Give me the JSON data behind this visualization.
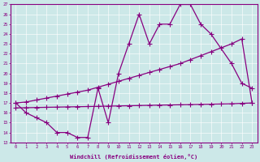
{
  "xlabel": "Windchill (Refroidissement éolien,°C)",
  "bg_color": "#cce8e8",
  "line_color": "#880080",
  "xmin": -0.5,
  "xmax": 23.5,
  "ymin": 13,
  "ymax": 27,
  "line1_x": [
    0,
    1,
    2,
    3,
    4,
    5,
    6,
    7,
    8,
    9,
    10,
    11,
    12,
    13,
    14,
    15,
    16,
    17,
    18,
    19,
    21,
    22,
    23
  ],
  "line1_y": [
    17,
    16,
    15.5,
    15,
    14,
    14,
    13.5,
    13.5,
    18.5,
    15,
    20,
    23,
    26,
    23,
    25,
    25,
    27,
    27,
    25,
    24,
    21,
    19,
    18.5
  ],
  "line2_x": [
    0,
    1,
    2,
    3,
    4,
    5,
    6,
    7,
    8,
    9,
    10,
    11,
    12,
    13,
    14,
    15,
    16,
    17,
    18,
    19,
    20,
    21,
    22,
    23
  ],
  "line2_y": [
    17,
    17.1,
    17.3,
    17.5,
    17.7,
    17.9,
    18.1,
    18.3,
    18.6,
    18.9,
    19.2,
    19.5,
    19.8,
    20.1,
    20.4,
    20.7,
    21.0,
    21.4,
    21.8,
    22.2,
    22.6,
    23.0,
    23.5,
    17
  ],
  "line3_x": [
    0,
    1,
    2,
    3,
    4,
    5,
    6,
    7,
    8,
    9,
    10,
    11,
    12,
    13,
    14,
    15,
    16,
    17,
    18,
    19,
    20,
    21,
    22,
    23
  ],
  "line3_y": [
    16.5,
    16.52,
    16.54,
    16.56,
    16.58,
    16.6,
    16.62,
    16.64,
    16.66,
    16.68,
    16.7,
    16.72,
    16.74,
    16.76,
    16.78,
    16.8,
    16.82,
    16.84,
    16.86,
    16.88,
    16.9,
    16.92,
    16.96,
    17.0
  ]
}
